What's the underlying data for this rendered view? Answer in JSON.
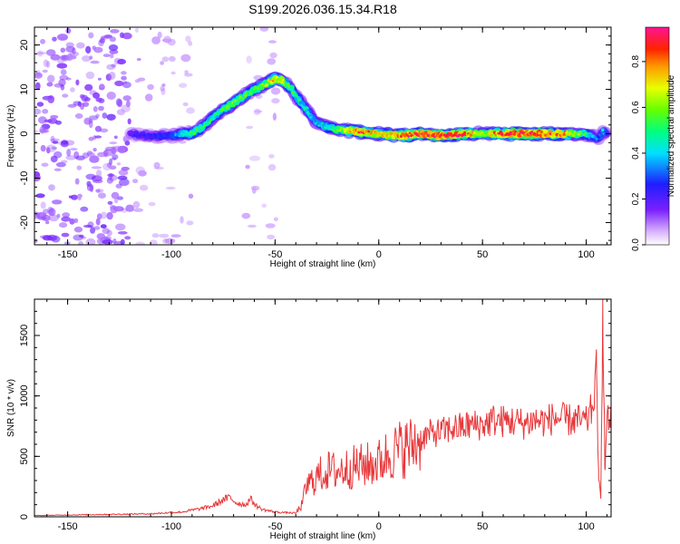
{
  "title": "S199.2026.036.15.34.R18",
  "chart_data": [
    {
      "type": "heatmap",
      "xlabel": "Height of straight line (km)",
      "ylabel": "Frequency (Hz)",
      "xlim": [
        -166,
        112
      ],
      "ylim": [
        -25,
        24
      ],
      "xticks": [
        -150,
        -100,
        -50,
        0,
        50,
        100
      ],
      "yticks": [
        -20,
        -10,
        0,
        10,
        20
      ],
      "colorbar": {
        "label": "Normalized spectral amplitude",
        "range": [
          0,
          0.95
        ],
        "ticks": [
          0.0,
          0.2,
          0.4,
          0.6,
          0.8
        ],
        "tick_labels": [
          "0.0",
          "0.2",
          "0.4",
          "0.6",
          "0.8"
        ]
      },
      "ridge": {
        "x": [
          -120,
          -110,
          -100,
          -95,
          -90,
          -85,
          -80,
          -75,
          -70,
          -65,
          -60,
          -55,
          -50,
          -47,
          -45,
          -42,
          -40,
          -35,
          -30,
          -25,
          -20,
          -10,
          0,
          10,
          20,
          30,
          40,
          50,
          60,
          70,
          80,
          90,
          100,
          103,
          106,
          108,
          110
        ],
        "y": [
          0,
          -0.5,
          -0.5,
          0,
          0,
          1.5,
          3.5,
          5.5,
          7,
          8.5,
          10,
          11,
          12.5,
          12,
          11.5,
          10,
          8.5,
          5.5,
          2.5,
          1.5,
          1,
          0.5,
          0,
          -0.5,
          0,
          -0.5,
          0,
          0,
          0,
          0,
          0,
          0,
          0,
          -0.5,
          -1,
          0.5,
          0
        ],
        "amplitude": [
          0.2,
          0.25,
          0.3,
          0.45,
          0.55,
          0.5,
          0.5,
          0.55,
          0.6,
          0.55,
          0.55,
          0.65,
          0.75,
          0.7,
          0.6,
          0.55,
          0.5,
          0.45,
          0.4,
          0.45,
          0.6,
          0.9,
          0.7,
          0.85,
          0.9,
          0.95,
          0.9,
          0.6,
          0.9,
          0.95,
          0.9,
          0.8,
          0.5,
          0.4,
          0.3,
          0.4,
          0.3
        ]
      },
      "noise_regions": [
        {
          "x": [
            -166,
            -120
          ],
          "y": [
            -25,
            24
          ],
          "amplitude": 0.3
        },
        {
          "x": [
            -118,
            -90
          ],
          "y": [
            -25,
            24
          ],
          "amplitude": 0.1
        },
        {
          "x": [
            -64,
            -48
          ],
          "y": [
            -25,
            24
          ],
          "amplitude": 0.08
        }
      ]
    },
    {
      "type": "line",
      "xlabel": "Height of straight line (km)",
      "ylabel": "SNR (10 * v/v)",
      "xlim": [
        -166,
        112
      ],
      "ylim": [
        0,
        1800
      ],
      "xticks": [
        -150,
        -100,
        -50,
        0,
        50,
        100
      ],
      "yticks": [
        0,
        500,
        1000,
        1500
      ],
      "line_color": "#e8373a",
      "x": [
        -166,
        -150,
        -130,
        -110,
        -95,
        -85,
        -80,
        -75,
        -72,
        -68,
        -64,
        -62,
        -59,
        -56,
        -50,
        -45,
        -40,
        -37,
        -35,
        -30,
        -25,
        -20,
        -15,
        -10,
        -5,
        0,
        5,
        10,
        15,
        20,
        25,
        30,
        35,
        40,
        45,
        50,
        55,
        60,
        65,
        70,
        75,
        80,
        85,
        90,
        95,
        100,
        103,
        105,
        106,
        107,
        108,
        109,
        110,
        112
      ],
      "y": [
        10,
        15,
        20,
        25,
        40,
        70,
        90,
        140,
        160,
        110,
        100,
        150,
        90,
        60,
        40,
        35,
        30,
        100,
        250,
        330,
        380,
        380,
        400,
        420,
        430,
        450,
        520,
        560,
        580,
        640,
        690,
        700,
        730,
        740,
        760,
        760,
        800,
        790,
        790,
        770,
        800,
        790,
        820,
        800,
        800,
        780,
        900,
        1200,
        300,
        150,
        1800,
        400,
        800,
        780
      ]
    }
  ]
}
